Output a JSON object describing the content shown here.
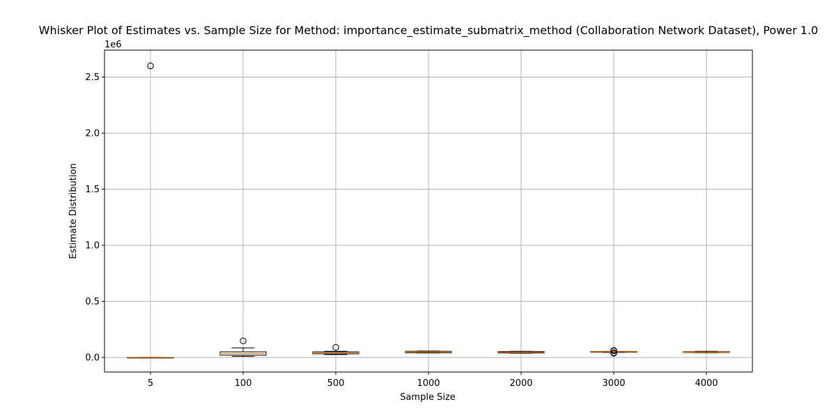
{
  "chart_data": {
    "type": "boxplot",
    "title": "Whisker Plot of Estimates vs. Sample Size for Method: importance_estimate_submatrix_method (Collaboration Network Dataset), Power 1.0",
    "xlabel": "Sample Size",
    "ylabel": "Estimate Distribution",
    "y_scale_label": "1e6",
    "ylim": [
      -130000,
      2740000
    ],
    "y_ticks": [
      0.0,
      0.5,
      1.0,
      1.5,
      2.0,
      2.5
    ],
    "y_tick_labels": [
      "0.0",
      "0.5",
      "1.0",
      "1.5",
      "2.0",
      "2.5"
    ],
    "y_tick_multiplier": 1000000,
    "grid": true,
    "categories": [
      "5",
      "100",
      "500",
      "1000",
      "2000",
      "3000",
      "4000"
    ],
    "boxes": [
      {
        "category": "5",
        "whisker_low": 0,
        "q1": 0,
        "median": 0,
        "q3": 1000,
        "whisker_high": 1000,
        "outliers": [
          2600000
        ]
      },
      {
        "category": "100",
        "whisker_low": 10000,
        "q1": 20000,
        "median": 35000,
        "q3": 50000,
        "whisker_high": 85000,
        "outliers": [
          148000
        ]
      },
      {
        "category": "500",
        "whisker_low": 25000,
        "q1": 32000,
        "median": 42000,
        "q3": 50000,
        "whisker_high": 55000,
        "outliers": [
          90000
        ]
      },
      {
        "category": "1000",
        "whisker_low": 40000,
        "q1": 42000,
        "median": 48000,
        "q3": 55000,
        "whisker_high": 57000,
        "outliers": []
      },
      {
        "category": "2000",
        "whisker_low": 38000,
        "q1": 40000,
        "median": 47000,
        "q3": 53000,
        "whisker_high": 55000,
        "outliers": []
      },
      {
        "category": "3000",
        "whisker_low": 45000,
        "q1": 46000,
        "median": 50000,
        "q3": 53000,
        "whisker_high": 54000,
        "outliers": [
          38000,
          42000,
          58000,
          62000
        ]
      },
      {
        "category": "4000",
        "whisker_low": 42000,
        "q1": 44000,
        "median": 48000,
        "q3": 52000,
        "whisker_high": 55000,
        "outliers": []
      }
    ],
    "colors": {
      "box": "#000000",
      "median": "#ff7f0e",
      "grid": "#b0b0b0"
    }
  }
}
